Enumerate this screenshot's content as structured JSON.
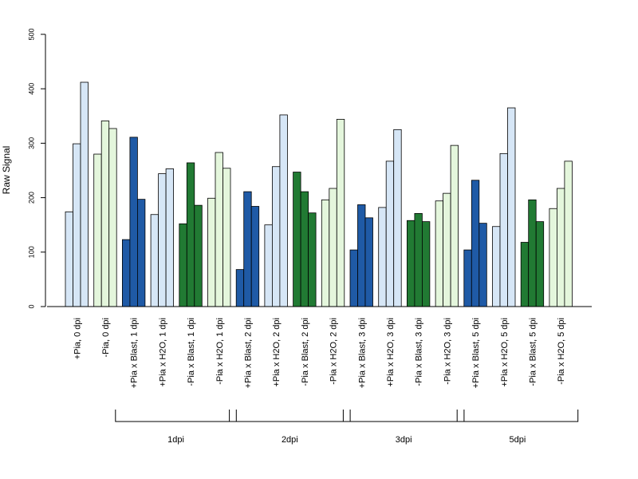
{
  "chart_data": {
    "type": "bar",
    "ylabel": "Raw Signal",
    "ylim": [
      0,
      500
    ],
    "yticks": [
      0,
      100,
      200,
      300,
      400,
      500
    ],
    "bars_per_group": 3,
    "colors": {
      "light_blue": "#d6e6f6",
      "dark_blue": "#1f5aa6",
      "dark_green": "#217a33",
      "light_green": "#e4f6dc"
    },
    "categories": [
      {
        "label": "+Pia, 0 dpi",
        "color": "light_blue",
        "values": [
          174,
          299,
          412
        ]
      },
      {
        "label": "-Pia, 0 dpi",
        "color": "light_green",
        "values": [
          280,
          341,
          327
        ]
      },
      {
        "label": "+Pia x Blast, 1 dpi",
        "color": "dark_blue",
        "values": [
          123,
          311,
          197
        ]
      },
      {
        "label": "+Pia x H2O, 1 dpi",
        "color": "light_blue",
        "values": [
          169,
          244,
          253
        ]
      },
      {
        "label": "-Pia x Blast, 1 dpi",
        "color": "dark_green",
        "values": [
          152,
          264,
          186
        ]
      },
      {
        "label": "-Pia x H2O, 1 dpi",
        "color": "light_green",
        "values": [
          199,
          283,
          254
        ]
      },
      {
        "label": "+Pia x Blast, 2 dpi",
        "color": "dark_blue",
        "values": [
          68,
          211,
          184
        ]
      },
      {
        "label": "+Pia x H2O, 2 dpi",
        "color": "light_blue",
        "values": [
          150,
          257,
          352
        ]
      },
      {
        "label": "-Pia x Blast, 2 dpi",
        "color": "dark_green",
        "values": [
          247,
          211,
          172
        ]
      },
      {
        "label": "-Pia x H2O, 2 dpi",
        "color": "light_green",
        "values": [
          196,
          217,
          344
        ]
      },
      {
        "label": "+Pia x Blast, 3 dpi",
        "color": "dark_blue",
        "values": [
          104,
          187,
          163
        ]
      },
      {
        "label": "+Pia x H2O, 3 dpi",
        "color": "light_blue",
        "values": [
          182,
          267,
          325
        ]
      },
      {
        "label": "-Pia x Blast, 3 dpi",
        "color": "dark_green",
        "values": [
          158,
          171,
          156
        ]
      },
      {
        "label": "-Pia x H2O, 3 dpi",
        "color": "light_green",
        "values": [
          194,
          208,
          296
        ]
      },
      {
        "label": "+Pia x Blast, 5 dpi",
        "color": "dark_blue",
        "values": [
          104,
          232,
          153
        ]
      },
      {
        "label": "+Pia x H2O, 5 dpi",
        "color": "light_blue",
        "values": [
          147,
          281,
          365
        ]
      },
      {
        "label": "-Pia x Blast, 5 dpi",
        "color": "dark_green",
        "values": [
          118,
          196,
          156
        ]
      },
      {
        "label": "-Pia x H2O, 5 dpi",
        "color": "light_green",
        "values": [
          180,
          217,
          267
        ]
      }
    ],
    "group_brackets": [
      {
        "label": "1dpi",
        "from_category": 2,
        "to_category": 5
      },
      {
        "label": "2dpi",
        "from_category": 6,
        "to_category": 9
      },
      {
        "label": "3dpi",
        "from_category": 10,
        "to_category": 13
      },
      {
        "label": "5dpi",
        "from_category": 14,
        "to_category": 17
      }
    ]
  }
}
